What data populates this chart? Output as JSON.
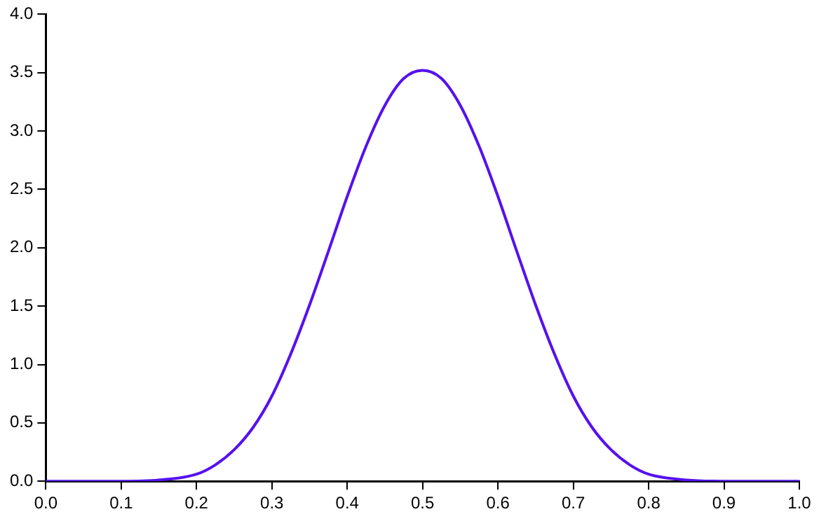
{
  "chart_data": {
    "type": "line",
    "x": [
      0,
      0.05,
      0.1,
      0.15,
      0.2,
      0.225,
      0.25,
      0.275,
      0.3,
      0.325,
      0.35,
      0.375,
      0.4,
      0.425,
      0.45,
      0.475,
      0.5,
      0.525,
      0.55,
      0.575,
      0.6,
      0.625,
      0.65,
      0.675,
      0.7,
      0.725,
      0.75,
      0.775,
      0.8,
      0.85,
      0.9,
      0.95,
      1
    ],
    "series": [
      {
        "color": "#5511ee",
        "values": [
          0,
          0,
          0,
          0.01,
          0.06,
          0.14,
          0.27,
          0.46,
          0.73,
          1.09,
          1.51,
          1.97,
          2.44,
          2.87,
          3.22,
          3.45,
          3.52,
          3.45,
          3.22,
          2.87,
          2.44,
          1.97,
          1.51,
          1.09,
          0.73,
          0.46,
          0.27,
          0.14,
          0.06,
          0.01,
          0,
          0,
          0
        ]
      }
    ],
    "xlim": [
      0,
      1
    ],
    "xticks": [
      {
        "value": 0,
        "label": "0.0"
      },
      {
        "value": 0.1,
        "label": "0.1"
      },
      {
        "value": 0.2,
        "label": "0.2"
      },
      {
        "value": 0.3,
        "label": "0.3"
      },
      {
        "value": 0.4,
        "label": "0.4"
      },
      {
        "value": 0.5,
        "label": "0.5"
      },
      {
        "value": 0.6,
        "label": "0.6"
      },
      {
        "value": 0.7,
        "label": "0.7"
      },
      {
        "value": 0.8,
        "label": "0.8"
      },
      {
        "value": 0.9,
        "label": "0.9"
      },
      {
        "value": 1,
        "label": "1.0"
      }
    ],
    "ylim": [
      0,
      4
    ],
    "yticks": [
      {
        "value": 0,
        "label": "0.0"
      },
      {
        "value": 0.5,
        "label": "0.5"
      },
      {
        "value": 1,
        "label": "1.0"
      },
      {
        "value": 1.5,
        "label": "1.5"
      },
      {
        "value": 2,
        "label": "2.0"
      },
      {
        "value": 2.5,
        "label": "2.5"
      },
      {
        "value": 3,
        "label": "3.0"
      },
      {
        "value": 3.5,
        "label": "3.5"
      },
      {
        "value": 4,
        "label": "4.0"
      }
    ],
    "grid": false,
    "legend": false,
    "marker": "none",
    "line_style": "solid"
  }
}
